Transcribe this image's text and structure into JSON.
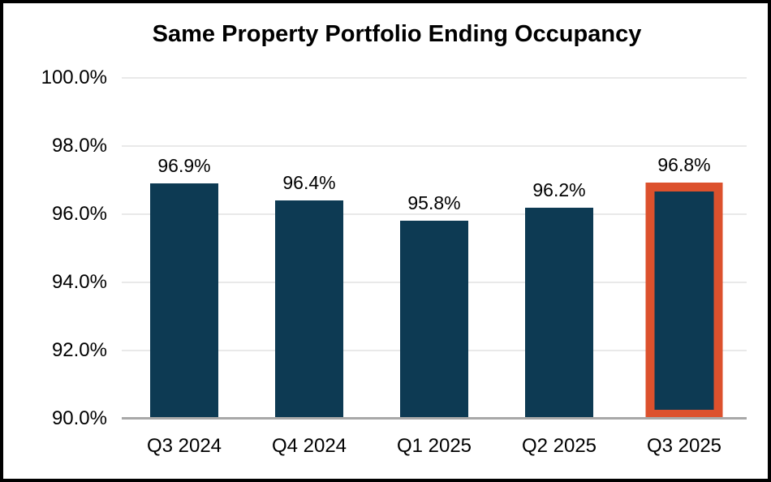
{
  "chart": {
    "title": "Same Property Portfolio Ending Occupancy"
  },
  "chart_data": {
    "type": "bar",
    "title": "Same Property Portfolio Ending Occupancy",
    "categories": [
      "Q3 2024",
      "Q4 2024",
      "Q1 2025",
      "Q2 2025",
      "Q3 2025"
    ],
    "values": [
      96.9,
      96.4,
      95.8,
      96.2,
      96.8
    ],
    "data_labels": [
      "96.9%",
      "96.4%",
      "95.8%",
      "96.2%",
      "96.8%"
    ],
    "highlighted_index": 4,
    "xlabel": "",
    "ylabel": "",
    "ylim": [
      90,
      100
    ],
    "y_ticks": [
      "100.0%",
      "98.0%",
      "96.0%",
      "94.0%",
      "92.0%",
      "90.0%"
    ],
    "y_tick_values": [
      100,
      98,
      96,
      94,
      92,
      90
    ],
    "grid": true,
    "legend": "none",
    "colors": {
      "bar": "#0d3a53",
      "highlight_outline": "#dc512d",
      "gridline": "#e9e9e9",
      "axis_line": "#a8a8a8",
      "text": "#000000",
      "background": "#ffffff",
      "frame_border": "#000000"
    }
  }
}
